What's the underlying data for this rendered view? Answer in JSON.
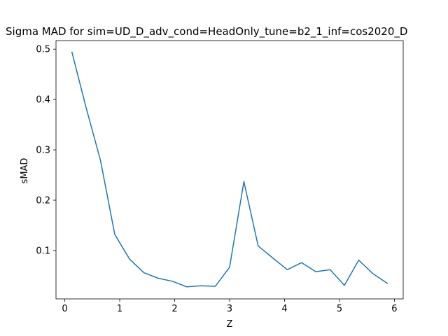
{
  "chart_data": {
    "type": "line",
    "title": "Sigma MAD for sim=UD_D_adv_cond=HeadOnly_tune=b2_1_inf=cos2020_D",
    "xlabel": "Z",
    "ylabel": "sMAD",
    "xlim": [
      -0.16,
      6.16
    ],
    "ylim": [
      0.004,
      0.517
    ],
    "grid": false,
    "xticks": [
      0,
      1,
      2,
      3,
      4,
      5,
      6
    ],
    "xtick_labels": [
      "0",
      "1",
      "2",
      "3",
      "4",
      "5",
      "6"
    ],
    "yticks": [
      0.1,
      0.2,
      0.3,
      0.4,
      0.5
    ],
    "ytick_labels": [
      "0.1",
      "0.2",
      "0.3",
      "0.4",
      "0.5"
    ],
    "series": [
      {
        "color": "#1f77b4",
        "x": [
          0.13,
          0.39,
          0.65,
          0.91,
          1.18,
          1.44,
          1.7,
          1.96,
          2.22,
          2.48,
          2.74,
          3.0,
          3.26,
          3.52,
          3.79,
          4.05,
          4.31,
          4.57,
          4.83,
          5.09,
          5.35,
          5.61,
          5.87
        ],
        "values": [
          0.494,
          0.383,
          0.279,
          0.132,
          0.083,
          0.056,
          0.045,
          0.039,
          0.028,
          0.03,
          0.029,
          0.067,
          0.237,
          0.109,
          0.085,
          0.062,
          0.076,
          0.058,
          0.062,
          0.031,
          0.081,
          0.054,
          0.035
        ]
      }
    ]
  }
}
